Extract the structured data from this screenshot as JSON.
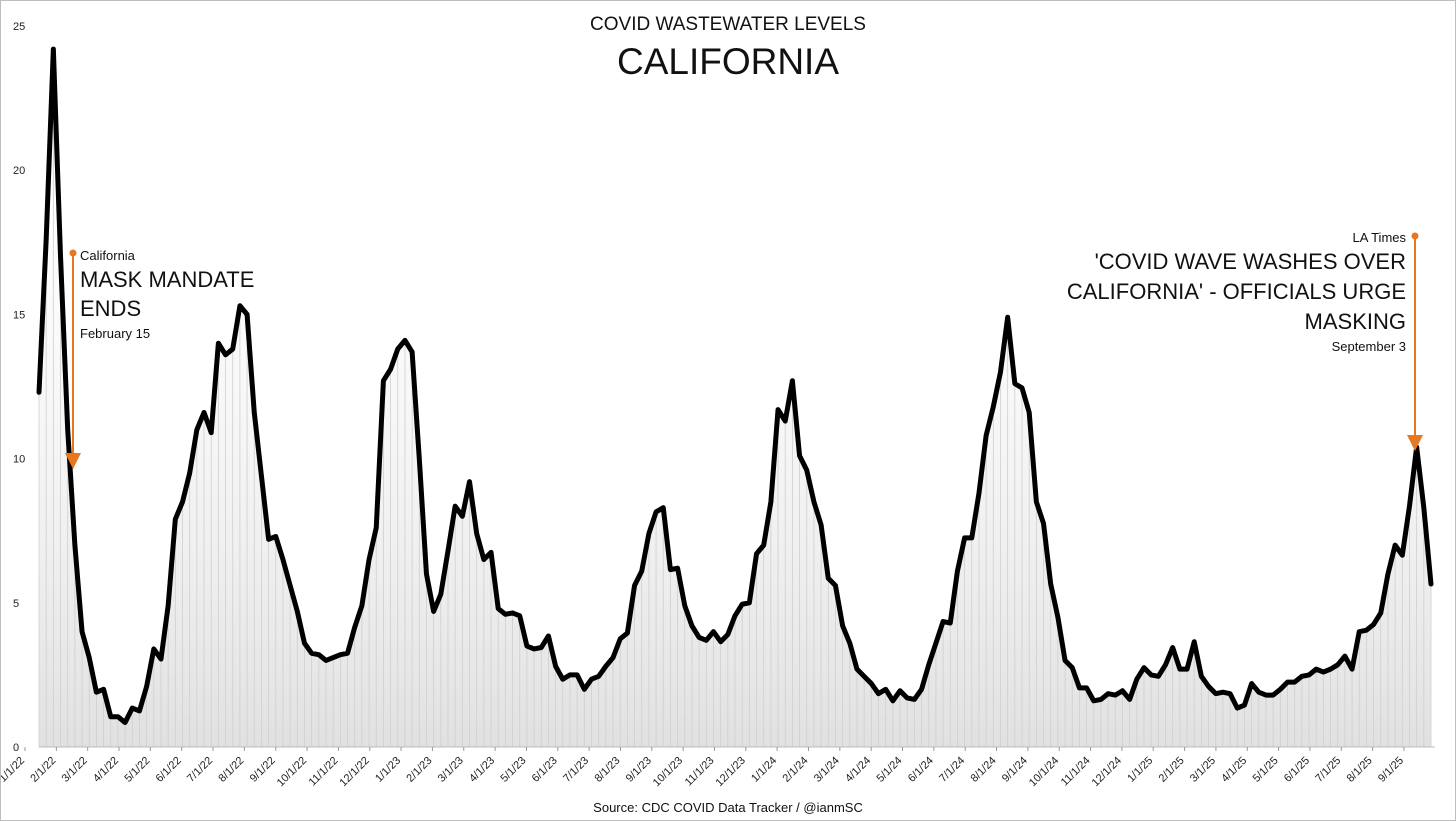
{
  "chart_data": {
    "type": "line",
    "title": "CALIFORNIA",
    "subtitle": "COVID WASTEWATER LEVELS",
    "source": "Source: CDC COVID Data Tracker / @ianmSC",
    "ylim": [
      0,
      25
    ],
    "yticks": [
      0,
      5,
      10,
      15,
      20,
      25
    ],
    "xticks": [
      "1/1/22",
      "2/1/22",
      "3/1/22",
      "4/1/22",
      "5/1/22",
      "6/1/22",
      "7/1/22",
      "8/1/22",
      "9/1/22",
      "10/1/22",
      "11/1/22",
      "12/1/22",
      "1/1/23",
      "2/1/23",
      "3/1/23",
      "4/1/23",
      "5/1/23",
      "6/1/23",
      "7/1/23",
      "8/1/23",
      "9/1/23",
      "10/1/23",
      "11/1/23",
      "12/1/23",
      "1/1/24",
      "2/1/24",
      "3/1/24",
      "4/1/24",
      "5/1/24",
      "6/1/24",
      "7/1/24",
      "8/1/24",
      "9/1/24",
      "10/1/24",
      "11/1/24",
      "12/1/24",
      "1/1/25",
      "2/1/25",
      "3/1/25",
      "4/1/25",
      "5/1/25",
      "6/1/25",
      "7/1/25",
      "8/1/25",
      "9/1/25"
    ],
    "grid": false,
    "legend": "none",
    "line_color": "#000000",
    "accent_color": "#e87722",
    "series": [
      {
        "values": [
          12.3,
          17.6,
          24.2,
          17.0,
          11.0,
          7.0,
          4.0,
          3.1,
          1.9,
          2.0,
          1.05,
          1.05,
          0.85,
          1.35,
          1.25,
          2.1,
          3.4,
          3.05,
          4.9,
          7.9,
          8.5,
          9.5,
          11.0,
          11.6,
          10.9,
          14.0,
          13.6,
          13.8,
          15.3,
          15.0,
          11.6,
          9.4,
          7.2,
          7.3,
          6.5,
          5.6,
          4.7,
          3.6,
          3.25,
          3.2,
          3.0,
          3.1,
          3.2,
          3.25,
          4.15,
          4.9,
          6.5,
          7.6,
          12.7,
          13.1,
          13.8,
          14.1,
          13.7,
          10.0,
          6.0,
          4.7,
          5.3,
          6.8,
          8.35,
          8.0,
          9.2,
          7.4,
          6.5,
          6.75,
          4.8,
          4.6,
          4.65,
          4.55,
          3.5,
          3.4,
          3.45,
          3.85,
          2.8,
          2.35,
          2.5,
          2.5,
          2.0,
          2.35,
          2.45,
          2.8,
          3.1,
          3.75,
          3.95,
          5.6,
          6.1,
          7.4,
          8.15,
          8.3,
          6.15,
          6.2,
          4.9,
          4.2,
          3.8,
          3.7,
          4.0,
          3.65,
          3.9,
          4.55,
          4.95,
          5.0,
          6.7,
          7.0,
          8.5,
          11.7,
          11.3,
          12.7,
          10.1,
          9.6,
          8.5,
          7.7,
          5.85,
          5.6,
          4.2,
          3.6,
          2.7,
          2.45,
          2.2,
          1.85,
          2.0,
          1.6,
          1.95,
          1.7,
          1.65,
          2.0,
          2.85,
          3.6,
          4.35,
          4.3,
          6.1,
          7.25,
          7.25,
          8.8,
          10.8,
          11.8,
          13.0,
          14.9,
          12.6,
          12.45,
          11.6,
          8.5,
          7.75,
          5.65,
          4.5,
          3.0,
          2.75,
          2.05,
          2.05,
          1.6,
          1.65,
          1.85,
          1.8,
          1.95,
          1.65,
          2.35,
          2.75,
          2.5,
          2.45,
          2.85,
          3.45,
          2.7,
          2.7,
          3.65,
          2.45,
          2.1,
          1.85,
          1.9,
          1.85,
          1.35,
          1.45,
          2.2,
          1.9,
          1.8,
          1.8,
          2.0,
          2.25,
          2.25,
          2.45,
          2.5,
          2.7,
          2.6,
          2.7,
          2.85,
          3.15,
          2.7,
          4.0,
          4.05,
          4.25,
          4.65,
          6.0,
          7.0,
          6.65,
          8.35,
          10.4,
          8.3,
          5.65
        ]
      }
    ],
    "annotations": [
      {
        "kicker": "California",
        "headline": [
          "MASK MANDATE",
          "ENDS"
        ],
        "date": "February 15",
        "align": "left"
      },
      {
        "kicker": "LA Times",
        "headline": [
          "'COVID WAVE WASHES OVER",
          "CALIFORNIA' - OFFICIALS URGE",
          "MASKING"
        ],
        "date": "September 3",
        "align": "right"
      }
    ]
  }
}
